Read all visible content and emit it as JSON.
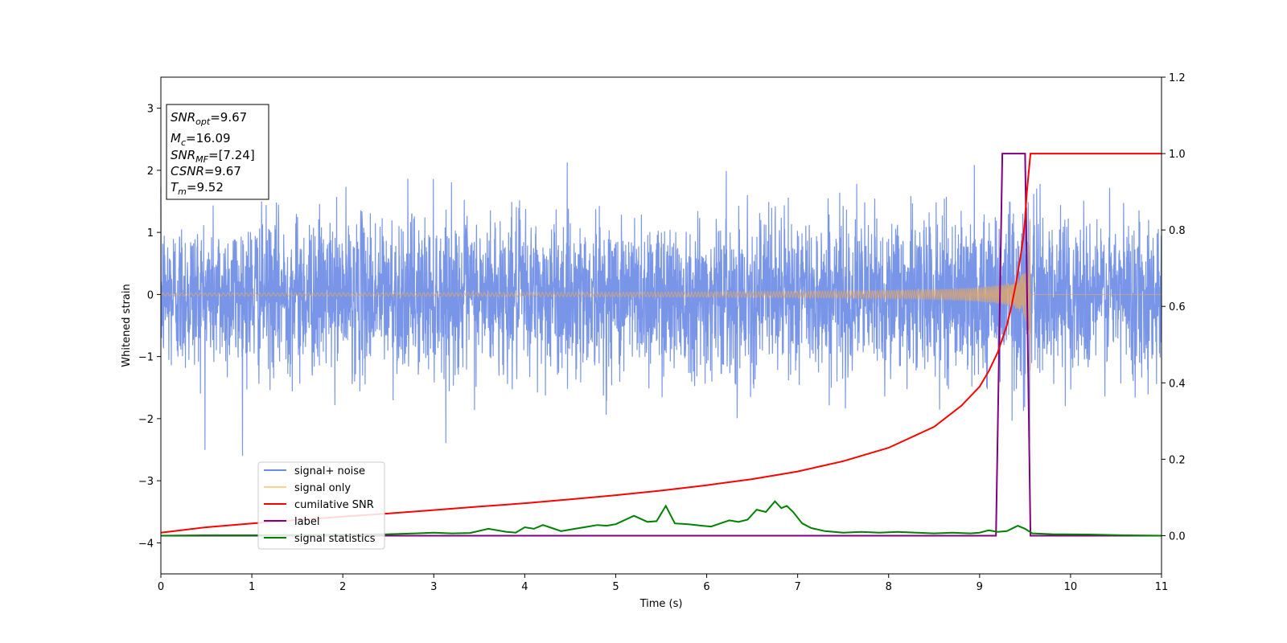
{
  "chart_data": {
    "type": "line",
    "xlabel": "Time (s)",
    "ylabel": "Whitened strain",
    "xlim": [
      0,
      11
    ],
    "ylim_left": [
      -4.5,
      3.5
    ],
    "ylim_right": [
      -0.1,
      1.2
    ],
    "x_ticks": [
      "0",
      "1",
      "2",
      "3",
      "4",
      "5",
      "6",
      "7",
      "8",
      "9",
      "10",
      "11"
    ],
    "y_left_ticks": [
      "−4",
      "−3",
      "−2",
      "−1",
      "0",
      "1",
      "2",
      "3"
    ],
    "y_right_ticks": [
      "0.0",
      "0.2",
      "0.4",
      "0.6",
      "0.8",
      "1.0",
      "1.2"
    ],
    "stats_box": {
      "snr_opt": {
        "main": "SNR",
        "sub": "opt",
        "value": "=9.67"
      },
      "mc": {
        "main": "M",
        "sub": "c",
        "value": "=16.09"
      },
      "snr_mf": {
        "main": "SNR",
        "sub": "MF",
        "value": "=[7.24]"
      },
      "csnr": {
        "main": "CSNR",
        "sub": "",
        "value": "=9.67"
      },
      "tm": {
        "main": "T",
        "sub": "m",
        "value": "=9.52"
      }
    },
    "colors": {
      "signal_noise": "#6a8ae6",
      "signal_only": "#e8a860",
      "cumulative": "#ff0000",
      "label": "#800080",
      "statistics": "#008000"
    },
    "series": [
      {
        "name": "signal+ noise",
        "axis": "left",
        "kind": "noise",
        "noise_std": 0.62,
        "x_range": [
          0,
          11
        ]
      },
      {
        "name": "signal only",
        "axis": "left",
        "kind": "chirp",
        "merger_time": 9.52,
        "end_time": 9.56,
        "peak_amplitude": 1.25,
        "base_amplitude": 0.025
      },
      {
        "name": "cumilative SNR",
        "axis": "right",
        "x": [
          0,
          0.5,
          1,
          1.5,
          2,
          2.5,
          3,
          3.5,
          4,
          4.5,
          5,
          5.5,
          6,
          6.5,
          7,
          7.5,
          8,
          8.5,
          8.8,
          9.0,
          9.1,
          9.2,
          9.3,
          9.35,
          9.4,
          9.45,
          9.48,
          9.5,
          9.52,
          9.56,
          11
        ],
        "y": [
          0.008,
          0.022,
          0.032,
          0.041,
          0.05,
          0.058,
          0.067,
          0.076,
          0.085,
          0.095,
          0.106,
          0.118,
          0.132,
          0.148,
          0.168,
          0.195,
          0.23,
          0.285,
          0.34,
          0.39,
          0.43,
          0.48,
          0.55,
          0.6,
          0.66,
          0.73,
          0.78,
          0.83,
          0.9,
          1.0,
          1.0
        ]
      },
      {
        "name": "label",
        "axis": "right",
        "x": [
          0,
          9.18,
          9.25,
          9.5,
          9.56,
          11
        ],
        "y": [
          0,
          0,
          1,
          1,
          0,
          0
        ]
      },
      {
        "name": "signal statistics",
        "axis": "right",
        "x": [
          0,
          0.5,
          1,
          1.5,
          2,
          2.5,
          2.8,
          3.0,
          3.2,
          3.4,
          3.6,
          3.8,
          3.9,
          4.0,
          4.1,
          4.2,
          4.3,
          4.4,
          4.5,
          4.6,
          4.7,
          4.8,
          4.9,
          5.0,
          5.2,
          5.35,
          5.45,
          5.55,
          5.65,
          5.8,
          5.95,
          6.05,
          6.15,
          6.25,
          6.35,
          6.45,
          6.55,
          6.65,
          6.75,
          6.82,
          6.88,
          6.95,
          7.05,
          7.15,
          7.3,
          7.5,
          7.7,
          7.9,
          8.1,
          8.3,
          8.5,
          8.7,
          8.9,
          9.0,
          9.1,
          9.2,
          9.3,
          9.42,
          9.5,
          9.58,
          9.8,
          10.2,
          10.6,
          11
        ],
        "y": [
          0.0,
          0.001,
          0.001,
          0.002,
          0.003,
          0.004,
          0.006,
          0.008,
          0.006,
          0.007,
          0.018,
          0.01,
          0.008,
          0.022,
          0.018,
          0.028,
          0.02,
          0.012,
          0.016,
          0.02,
          0.024,
          0.028,
          0.026,
          0.03,
          0.052,
          0.036,
          0.038,
          0.078,
          0.032,
          0.03,
          0.026,
          0.024,
          0.032,
          0.04,
          0.036,
          0.042,
          0.068,
          0.062,
          0.09,
          0.072,
          0.078,
          0.062,
          0.032,
          0.02,
          0.012,
          0.008,
          0.01,
          0.008,
          0.01,
          0.008,
          0.006,
          0.008,
          0.006,
          0.008,
          0.014,
          0.01,
          0.012,
          0.026,
          0.018,
          0.006,
          0.004,
          0.003,
          0.001,
          0.0
        ]
      }
    ],
    "legend_position": "lower-left"
  }
}
